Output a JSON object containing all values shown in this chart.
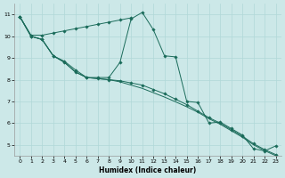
{
  "xlabel": "Humidex (Indice chaleur)",
  "background_color": "#cce8e8",
  "grid_color": "#b0d8d8",
  "line_color": "#1a6b5a",
  "xlim": [
    -0.5,
    23.5
  ],
  "ylim": [
    4.5,
    11.5
  ],
  "xticks": [
    0,
    1,
    2,
    3,
    4,
    5,
    6,
    7,
    8,
    9,
    10,
    11,
    12,
    13,
    14,
    15,
    16,
    17,
    18,
    19,
    20,
    21,
    22,
    23
  ],
  "yticks": [
    5,
    6,
    7,
    8,
    9,
    10,
    11
  ],
  "line1_x": [
    0,
    1,
    2,
    3,
    4,
    5,
    6,
    7,
    8,
    9,
    10,
    11,
    12,
    13,
    14,
    15,
    16,
    17,
    18,
    19,
    20,
    21,
    22,
    23
  ],
  "line1_y": [
    10.9,
    10.0,
    9.85,
    9.1,
    8.85,
    8.45,
    8.1,
    8.1,
    8.1,
    8.8,
    10.8,
    11.1,
    10.3,
    9.1,
    9.05,
    7.0,
    6.95,
    6.0,
    6.05,
    5.75,
    5.45,
    4.82,
    4.72,
    4.95
  ],
  "line2_x": [
    0,
    1,
    2,
    3,
    4,
    5,
    6,
    7,
    8,
    9,
    10
  ],
  "line2_y": [
    10.9,
    10.05,
    10.05,
    10.15,
    10.25,
    10.35,
    10.45,
    10.55,
    10.65,
    10.75,
    10.85
  ],
  "line3_x": [
    0,
    1,
    2,
    3,
    4,
    5,
    6,
    7,
    8,
    9,
    10,
    11,
    12,
    13,
    14,
    15,
    16,
    17,
    18,
    19,
    20,
    21,
    22,
    23
  ],
  "line3_y": [
    10.9,
    10.0,
    9.85,
    9.1,
    8.8,
    8.35,
    8.1,
    8.05,
    8.0,
    7.95,
    7.85,
    7.75,
    7.55,
    7.35,
    7.1,
    6.85,
    6.55,
    6.25,
    6.0,
    5.7,
    5.4,
    5.05,
    4.78,
    4.55
  ],
  "line4_x": [
    0,
    1,
    2,
    3,
    4,
    5,
    6,
    7,
    8,
    9,
    10,
    11,
    12,
    13,
    14,
    15,
    16,
    17,
    18,
    19,
    20,
    21,
    22,
    23
  ],
  "line4_y": [
    10.9,
    10.0,
    9.85,
    9.1,
    8.8,
    8.35,
    8.1,
    8.05,
    8.0,
    7.9,
    7.75,
    7.6,
    7.4,
    7.2,
    6.98,
    6.75,
    6.5,
    6.2,
    5.95,
    5.65,
    5.35,
    5.0,
    4.73,
    4.5
  ]
}
